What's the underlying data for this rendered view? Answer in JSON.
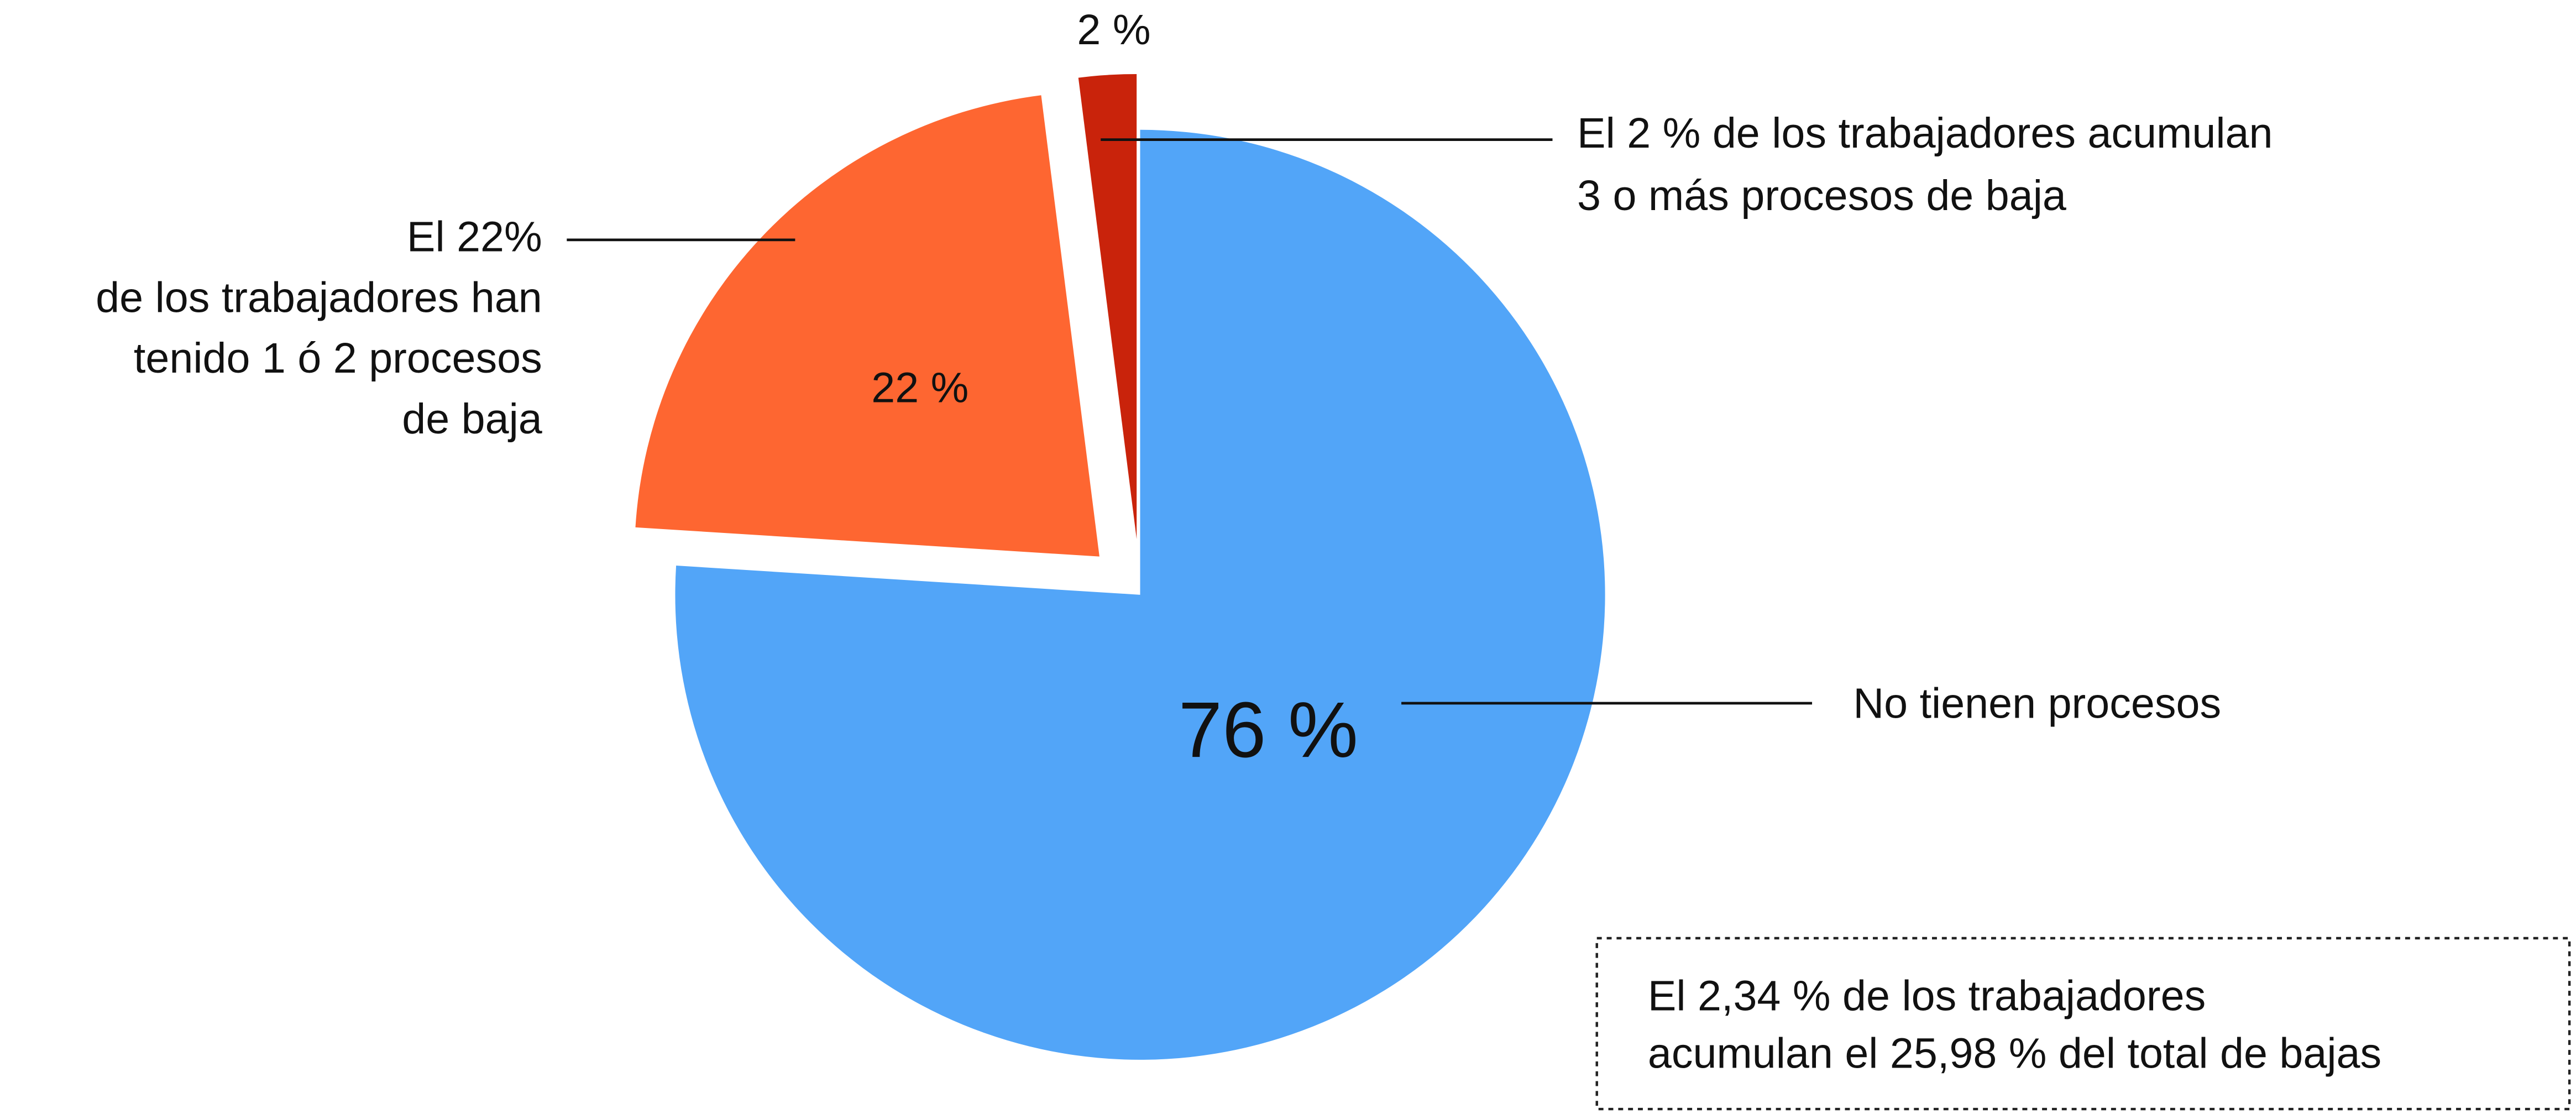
{
  "chart_data": {
    "type": "pie",
    "categories": [
      [
        "No tienen procesos"
      ],
      [
        "El 22%",
        "de los trabajadores han",
        "tenido 1 ó 2 procesos",
        "de baja"
      ],
      [
        "El 2 % de los trabajadores acumulan",
        "3 o más procesos de baja"
      ]
    ],
    "values": [
      76,
      22,
      2
    ],
    "value_labels": [
      "76 %",
      "22 %",
      "2 %"
    ],
    "colors": [
      "#52a5f8",
      "#fe6631",
      "#c9230b"
    ],
    "note": [
      "El 2,34 % de los trabajadores",
      "acumulan el 25,98 % del total de bajas"
    ]
  }
}
